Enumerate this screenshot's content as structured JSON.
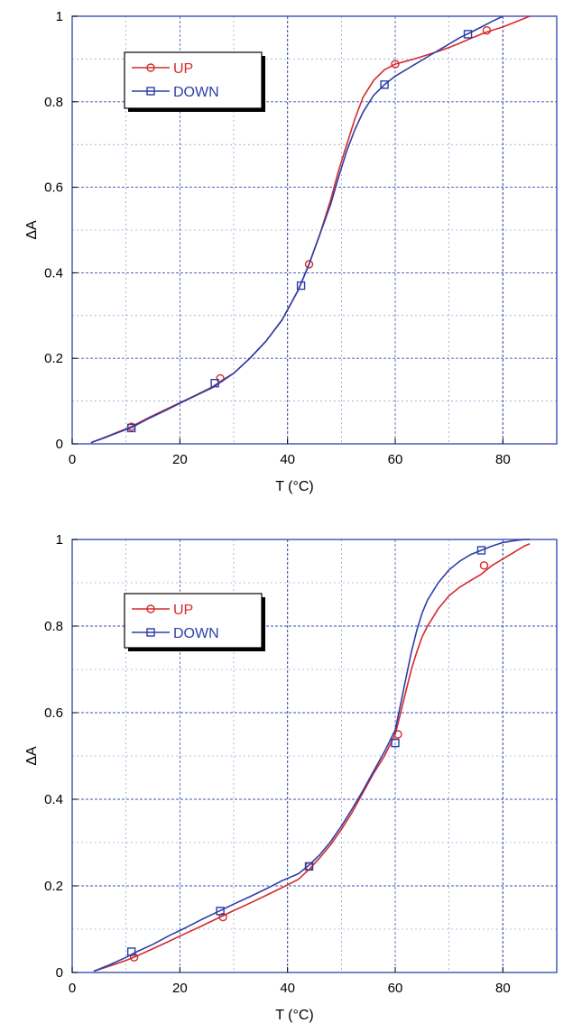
{
  "chart_data": [
    {
      "type": "line",
      "title": "",
      "xlabel": "T (°C)",
      "ylabel": "ΔA",
      "xlim": [
        0,
        90
      ],
      "ylim": [
        0,
        1
      ],
      "xticks": [
        0,
        20,
        40,
        60,
        80
      ],
      "xtick_labels": [
        "0",
        "20",
        "40",
        "60",
        "80"
      ],
      "yticks": [
        0,
        0.2,
        0.4,
        0.6,
        0.8,
        1
      ],
      "ytick_labels": [
        "0",
        "0.2",
        "0.4",
        "0.6",
        "0.8",
        "1"
      ],
      "grid": true,
      "legend_position": "top-left",
      "colors": {
        "up": "#d62a2a",
        "down": "#2b3fa8",
        "grid": "#3a4fb8",
        "frame": "#3a4fb8"
      },
      "series": [
        {
          "name": "UP",
          "marker": "circle",
          "x": [
            3.5,
            6,
            8,
            11,
            14,
            17,
            20,
            23,
            26,
            28,
            30,
            33,
            36,
            39,
            42,
            44,
            46,
            48,
            49.5,
            51,
            52.5,
            54,
            56,
            58,
            60,
            62,
            64,
            66,
            68,
            70,
            72,
            74,
            77,
            80,
            82,
            84,
            85
          ],
          "y": [
            0.003,
            0.015,
            0.025,
            0.04,
            0.06,
            0.078,
            0.096,
            0.114,
            0.133,
            0.15,
            0.165,
            0.2,
            0.24,
            0.29,
            0.36,
            0.42,
            0.49,
            0.57,
            0.64,
            0.7,
            0.76,
            0.81,
            0.85,
            0.875,
            0.888,
            0.895,
            0.902,
            0.91,
            0.918,
            0.927,
            0.937,
            0.948,
            0.963,
            0.975,
            0.985,
            0.995,
            1.0
          ],
          "marker_x": [
            11,
            27.5,
            44,
            60,
            77
          ],
          "marker_y": [
            0.04,
            0.153,
            0.42,
            0.888,
            0.967
          ]
        },
        {
          "name": "DOWN",
          "marker": "square",
          "x": [
            3.5,
            6,
            8,
            11,
            14,
            17,
            20,
            23,
            26,
            28,
            30,
            33,
            36,
            39,
            42,
            44,
            46,
            48,
            49.5,
            51,
            52.5,
            54,
            56,
            58,
            60,
            62,
            64,
            66,
            68,
            70,
            72,
            74,
            76,
            78,
            80
          ],
          "y": [
            0.003,
            0.014,
            0.024,
            0.038,
            0.058,
            0.076,
            0.095,
            0.113,
            0.131,
            0.148,
            0.165,
            0.2,
            0.24,
            0.29,
            0.36,
            0.42,
            0.49,
            0.56,
            0.625,
            0.685,
            0.735,
            0.775,
            0.815,
            0.84,
            0.86,
            0.875,
            0.89,
            0.905,
            0.92,
            0.935,
            0.95,
            0.962,
            0.975,
            0.988,
            1.0
          ],
          "marker_x": [
            11,
            26.5,
            42.5,
            58,
            73.5
          ],
          "marker_y": [
            0.037,
            0.142,
            0.37,
            0.84,
            0.958
          ]
        }
      ]
    },
    {
      "type": "line",
      "title": "",
      "xlabel": "T (°C)",
      "ylabel": "ΔA",
      "xlim": [
        0,
        90
      ],
      "ylim": [
        0,
        1
      ],
      "xticks": [
        0,
        20,
        40,
        60,
        80
      ],
      "xtick_labels": [
        "0",
        "20",
        "40",
        "60",
        "80"
      ],
      "yticks": [
        0,
        0.2,
        0.4,
        0.6,
        0.8,
        1
      ],
      "ytick_labels": [
        "0",
        "0.2",
        "0.4",
        "0.6",
        "0.8",
        "1"
      ],
      "grid": true,
      "legend_position": "top-left",
      "colors": {
        "up": "#d62a2a",
        "down": "#2b3fa8",
        "grid": "#3a4fb8",
        "frame": "#3a4fb8"
      },
      "series": [
        {
          "name": "UP",
          "marker": "circle",
          "x": [
            4,
            7,
            10,
            12,
            15,
            18,
            21,
            24,
            27,
            30,
            33,
            36,
            39,
            42,
            44,
            46,
            48,
            50,
            52,
            54,
            56,
            58,
            60,
            61,
            62,
            63,
            64,
            65,
            66,
            67,
            68,
            70,
            72,
            74,
            76,
            78,
            80,
            82,
            84,
            85
          ],
          "y": [
            0.003,
            0.015,
            0.028,
            0.038,
            0.055,
            0.072,
            0.09,
            0.107,
            0.125,
            0.143,
            0.16,
            0.178,
            0.196,
            0.215,
            0.238,
            0.265,
            0.295,
            0.33,
            0.37,
            0.415,
            0.46,
            0.5,
            0.55,
            0.6,
            0.65,
            0.7,
            0.74,
            0.775,
            0.8,
            0.82,
            0.84,
            0.87,
            0.89,
            0.905,
            0.92,
            0.94,
            0.955,
            0.97,
            0.985,
            0.99
          ],
          "marker_x": [
            11.5,
            28,
            44,
            60.5,
            76.5
          ],
          "marker_y": [
            0.035,
            0.128,
            0.245,
            0.55,
            0.94
          ]
        },
        {
          "name": "DOWN",
          "marker": "square",
          "x": [
            4,
            7,
            10,
            12,
            15,
            18,
            21,
            24,
            27,
            30,
            33,
            36,
            39,
            42,
            44,
            46,
            48,
            50,
            52,
            54,
            56,
            58,
            60,
            61,
            62,
            63,
            64,
            65,
            66,
            68,
            70,
            72,
            74,
            76,
            78,
            80,
            82,
            84,
            85
          ],
          "y": [
            0.003,
            0.018,
            0.035,
            0.048,
            0.065,
            0.085,
            0.103,
            0.122,
            0.14,
            0.158,
            0.175,
            0.193,
            0.212,
            0.228,
            0.248,
            0.272,
            0.302,
            0.338,
            0.378,
            0.42,
            0.465,
            0.51,
            0.56,
            0.62,
            0.68,
            0.74,
            0.79,
            0.83,
            0.86,
            0.9,
            0.93,
            0.95,
            0.965,
            0.975,
            0.985,
            0.993,
            0.997,
            1.0,
            1.0
          ],
          "marker_x": [
            11,
            27.5,
            44,
            60,
            76
          ],
          "marker_y": [
            0.048,
            0.142,
            0.245,
            0.53,
            0.975
          ]
        }
      ]
    }
  ]
}
